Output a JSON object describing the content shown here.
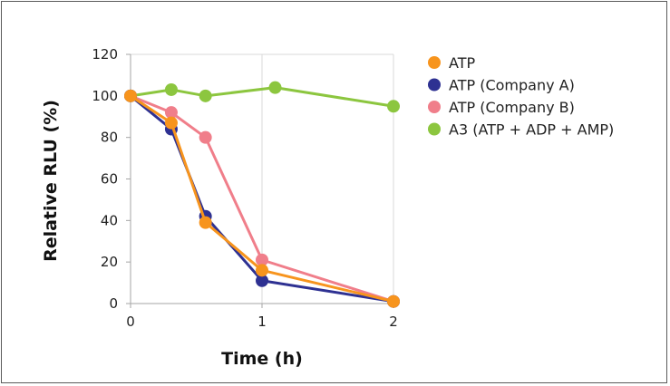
{
  "chart_data": {
    "type": "line",
    "xlabel": "Time (h)",
    "ylabel": "Relative RLU (%)",
    "xlim": [
      0,
      2
    ],
    "ylim": [
      0,
      120
    ],
    "xticks": [
      0,
      1,
      2
    ],
    "yticks": [
      0,
      20,
      40,
      60,
      80,
      100,
      120
    ],
    "grid": "vertical",
    "legend_position": "right",
    "series": [
      {
        "name": "A3 (ATP + ADP + AMP)",
        "color": "#8cc63f",
        "x": [
          0,
          0.31,
          0.57,
          1.1,
          2
        ],
        "y": [
          100,
          103,
          100,
          104,
          95
        ]
      },
      {
        "name": "ATP (Company B)",
        "color": "#f07e8a",
        "x": [
          0,
          0.31,
          0.57,
          1,
          2
        ],
        "y": [
          100,
          92,
          80,
          21,
          1
        ]
      },
      {
        "name": "ATP (Company A)",
        "color": "#2e3192",
        "x": [
          0,
          0.31,
          0.57,
          1,
          2
        ],
        "y": [
          100,
          84,
          42,
          11,
          1
        ]
      },
      {
        "name": "ATP",
        "color": "#f7941d",
        "x": [
          0,
          0.31,
          0.57,
          1,
          2
        ],
        "y": [
          100,
          87,
          39,
          16,
          1
        ]
      }
    ],
    "legend_order": [
      "ATP",
      "ATP (Company A)",
      "ATP (Company B)",
      "A3 (ATP + ADP + AMP)"
    ]
  }
}
